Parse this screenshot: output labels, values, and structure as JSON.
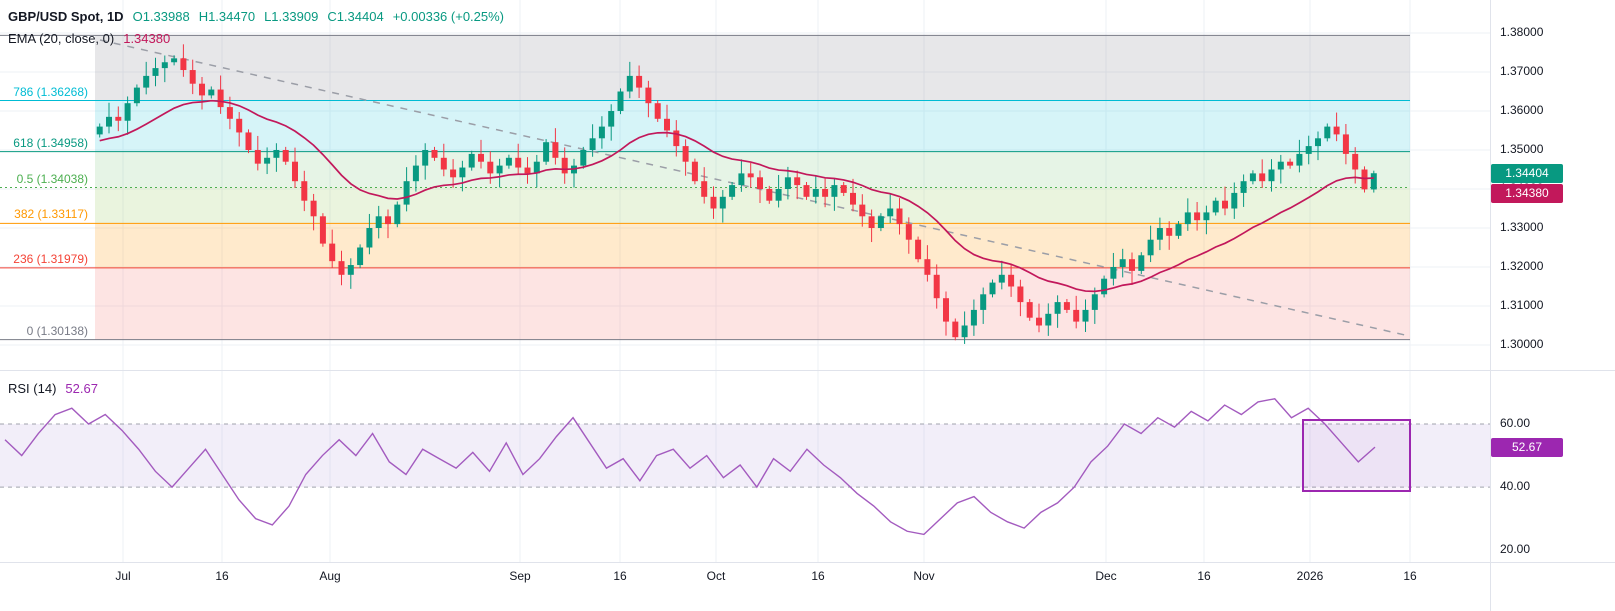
{
  "header": {
    "symbol": "GBP/USD Spot, 1D",
    "ohlc": {
      "open": "O1.33988",
      "high": "H1.34470",
      "low": "L1.33909",
      "close": "C1.34404",
      "change": "+0.00336 (+0.25%)"
    },
    "ema": {
      "label": "EMA (20, close, 0)",
      "value": "1.34380"
    }
  },
  "badges": {
    "last_price": "1.34404",
    "ema": "1.34380",
    "rsi": "52.67"
  },
  "colors": {
    "up": "#089981",
    "down": "#f23645",
    "ema_line": "#c2185b",
    "rsi_line": "#a35bbf",
    "rsi_accent": "#9c27b0",
    "rsi_band": "rgba(126,87,194,0.10)",
    "trendline": "#9b9ea7",
    "grid": "#eef1f6",
    "axis_border": "#e0e3eb",
    "text": "#131722"
  },
  "chart_data": {
    "type": "candlestick",
    "title": "GBP/USD Spot",
    "timeframe": "1D",
    "last_ohlc": {
      "open": 1.33988,
      "high": 1.3447,
      "low": 1.33909,
      "close": 1.34404,
      "change_abs": 0.00336,
      "change_pct": 0.25
    },
    "closes": [
      1.356,
      1.3585,
      1.3575,
      1.362,
      1.366,
      1.369,
      1.371,
      1.3725,
      1.3735,
      1.3705,
      1.367,
      1.364,
      1.3655,
      1.361,
      1.358,
      1.3545,
      1.35,
      1.3465,
      1.348,
      1.35,
      1.347,
      1.342,
      1.337,
      1.333,
      1.326,
      1.3215,
      1.318,
      1.3205,
      1.325,
      1.33,
      1.333,
      1.331,
      1.336,
      1.342,
      1.346,
      1.35,
      1.348,
      1.345,
      1.343,
      1.3455,
      1.349,
      1.347,
      1.344,
      1.346,
      1.348,
      1.3455,
      1.344,
      1.347,
      1.352,
      1.348,
      1.344,
      1.346,
      1.35,
      1.353,
      1.356,
      1.36,
      1.365,
      1.369,
      1.366,
      1.362,
      1.358,
      1.355,
      1.351,
      1.347,
      1.342,
      1.338,
      1.335,
      1.338,
      1.341,
      1.344,
      1.343,
      1.34,
      1.337,
      1.34,
      1.343,
      1.341,
      1.338,
      1.34,
      1.338,
      1.341,
      1.339,
      1.336,
      1.333,
      1.33,
      1.333,
      1.335,
      1.331,
      1.327,
      1.322,
      1.318,
      1.312,
      1.306,
      1.302,
      1.305,
      1.309,
      1.313,
      1.316,
      1.318,
      1.315,
      1.311,
      1.307,
      1.305,
      1.308,
      1.311,
      1.309,
      1.306,
      1.309,
      1.313,
      1.317,
      1.32,
      1.322,
      1.319,
      1.323,
      1.327,
      1.33,
      1.328,
      1.331,
      1.334,
      1.332,
      1.334,
      1.337,
      1.335,
      1.339,
      1.342,
      1.344,
      1.342,
      1.345,
      1.347,
      1.346,
      1.349,
      1.351,
      1.353,
      1.356,
      1.354,
      1.349,
      1.345,
      1.3399,
      1.34404
    ],
    "x_axis": {
      "labels": [
        "Jul",
        "16",
        "Aug",
        "Sep",
        "16",
        "Oct",
        "16",
        "Nov",
        "Dec",
        "16",
        "2026",
        "16"
      ]
    },
    "y_axis": {
      "labels": [
        "1.38000",
        "1.37000",
        "1.36000",
        "1.35000",
        "1.34000",
        "1.33000",
        "1.32000",
        "1.31000",
        "1.30000"
      ],
      "range": [
        1.3,
        1.38
      ]
    },
    "indicators": {
      "ema": {
        "label": "EMA (20, close, 0)",
        "period": 20,
        "source": "close",
        "offset": 0,
        "value": 1.3438
      },
      "rsi": {
        "label": "RSI (14)",
        "period": 14,
        "value": 52.67,
        "value_text": "52.67",
        "axis_labels": [
          "60.00",
          "40.00",
          "20.00"
        ],
        "guide_lines": [
          60,
          40
        ],
        "values": [
          55,
          50,
          57,
          63,
          65,
          60,
          63,
          58,
          52,
          45,
          40,
          46,
          52,
          44,
          36,
          30,
          28,
          34,
          44,
          50,
          55,
          50,
          57,
          48,
          44,
          52,
          49,
          46,
          51,
          45,
          54,
          44,
          49,
          56,
          62,
          54,
          46,
          49,
          42,
          50,
          52,
          46,
          50,
          43,
          47,
          40,
          49,
          45,
          52,
          47,
          43,
          38,
          34,
          29,
          26,
          25,
          30,
          35,
          37,
          32,
          29,
          27,
          32,
          35,
          40,
          48,
          53,
          60,
          57,
          62,
          59,
          64,
          61,
          66,
          63,
          67,
          68,
          62,
          65,
          60,
          54,
          48,
          52.67
        ]
      }
    },
    "fib_retracement": {
      "levels": [
        {
          "ratio": "1",
          "value": 1.37938,
          "label": "",
          "color": "#787b86",
          "style": "solid"
        },
        {
          "ratio": "0.786",
          "value": 1.36268,
          "label": "786 (1.36268)",
          "color": "#00bcd4",
          "style": "solid"
        },
        {
          "ratio": "0.618",
          "value": 1.34958,
          "label": "618 (1.34958)",
          "color": "#089981",
          "style": "solid"
        },
        {
          "ratio": "0.5",
          "value": 1.34038,
          "label": "0.5 (1.34038)",
          "color": "#4caf50",
          "style": "dotted"
        },
        {
          "ratio": "0.382",
          "value": 1.33117,
          "label": "382 (1.33117)",
          "color": "#ff9800",
          "style": "solid"
        },
        {
          "ratio": "0.236",
          "value": 1.31979,
          "label": "236 (1.31979)",
          "color": "#f44336",
          "style": "solid"
        },
        {
          "ratio": "0",
          "value": 1.30138,
          "label": "0 (1.30138)",
          "color": "#787b86",
          "style": "solid"
        }
      ],
      "band_colors": [
        "rgba(120,123,134,0.18)",
        "rgba(0,188,212,0.16)",
        "rgba(76,175,80,0.14)",
        "rgba(139,195,74,0.18)",
        "rgba(255,152,0,0.20)",
        "rgba(244,67,54,0.14)"
      ]
    },
    "trendline": {
      "style": "dashed",
      "direction": "descending"
    },
    "highlight_box": {
      "pane": "rsi",
      "color": "#9c27b0"
    }
  }
}
